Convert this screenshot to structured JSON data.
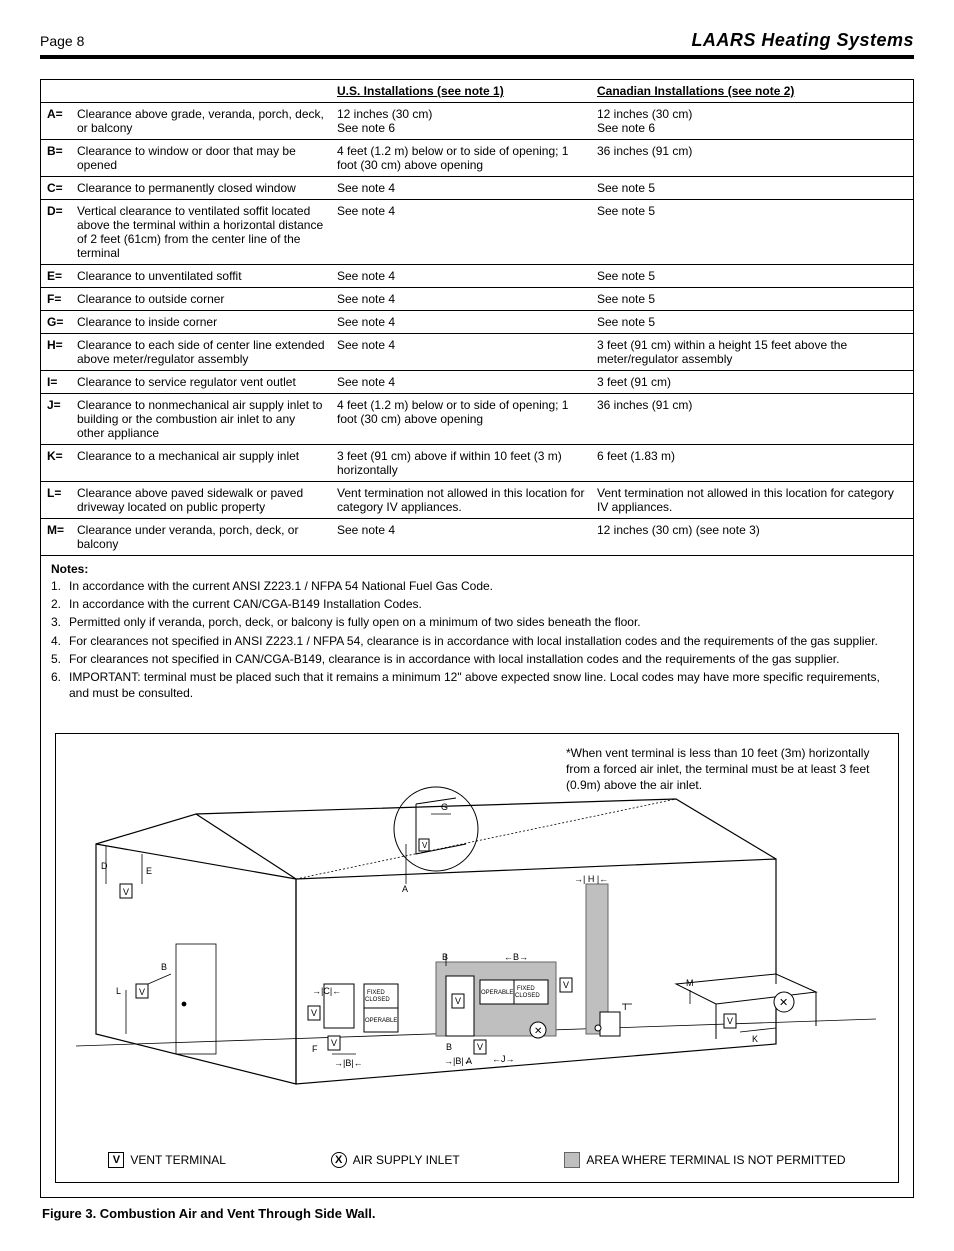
{
  "header": {
    "page_label": "Page 8",
    "brand": "LAARS Heating Systems"
  },
  "table": {
    "columns": [
      "",
      "",
      "U.S. Installations (see note 1)",
      "Canadian Installations (see note 2)"
    ],
    "rows": [
      {
        "key": "A=",
        "desc": "Clearance above grade, veranda, porch, deck, or balcony",
        "us": "12 inches (30 cm)\nSee note 6",
        "ca": "12 inches (30 cm)\nSee note 6"
      },
      {
        "key": "B=",
        "desc": "Clearance to window or door that may be opened",
        "us": "4 feet (1.2 m) below or to side of opening; 1 foot (30 cm) above opening",
        "ca": "36 inches (91 cm)"
      },
      {
        "key": "C=",
        "desc": "Clearance to permanently closed window",
        "us": "See note 4",
        "ca": "See note 5"
      },
      {
        "key": "D=",
        "desc": "Vertical clearance to ventilated soffit located above the terminal within a horizontal distance of 2 feet (61cm) from the center line of the terminal",
        "us": "See note 4",
        "ca": "See note 5"
      },
      {
        "key": "E=",
        "desc": "Clearance to unventilated soffit",
        "us": "See note 4",
        "ca": "See note 5"
      },
      {
        "key": "F=",
        "desc": "Clearance to outside corner",
        "us": "See note 4",
        "ca": "See note 5"
      },
      {
        "key": "G=",
        "desc": "Clearance to inside corner",
        "us": "See note 4",
        "ca": "See note 5"
      },
      {
        "key": "H=",
        "desc": "Clearance to each side of center line extended above meter/regulator assembly",
        "us": "See note 4",
        "ca": "3 feet (91 cm) within a height 15 feet above the meter/regulator assembly"
      },
      {
        "key": "I=",
        "desc": "Clearance to service regulator vent outlet",
        "us": "See note 4",
        "ca": "3 feet (91 cm)"
      },
      {
        "key": "J=",
        "desc": "Clearance to nonmechanical air supply inlet to building or the combustion air inlet to any other appliance",
        "us": "4 feet (1.2 m) below or to side of opening; 1 foot (30 cm) above opening",
        "ca": "36 inches (91 cm)"
      },
      {
        "key": "K=",
        "desc": "Clearance to a mechanical air supply inlet",
        "us": "3 feet (91 cm) above if within 10 feet (3 m) horizontally",
        "ca": "6 feet (1.83 m)"
      },
      {
        "key": "L=",
        "desc": "Clearance above paved sidewalk or paved driveway located on public property",
        "us": "Vent termination not allowed in this location for category IV appliances.",
        "ca": "Vent termination not allowed in this location for category IV appliances."
      },
      {
        "key": "M=",
        "desc": "Clearance under veranda, porch, deck, or balcony",
        "us": "See note 4",
        "ca": "12 inches (30 cm) (see note 3)"
      }
    ]
  },
  "notes": {
    "title": "Notes:",
    "items": [
      "In accordance with the current ANSI Z223.1 / NFPA 54 National Fuel Gas Code.",
      "In accordance with the current CAN/CGA-B149 Installation Codes.",
      "Permitted only if veranda, porch, deck, or balcony is fully open on a minimum of two sides beneath the floor.",
      "For clearances not specified in ANSI Z223.1 / NFPA 54, clearance is in accordance with local installation codes and the requirements of the gas supplier.",
      "For clearances not specified in CAN/CGA-B149, clearance is in accordance with local installation codes and the requirements of the gas supplier.",
      "IMPORTANT: terminal must be placed such that it remains a minimum 12\" above expected snow line. Local codes may have more specific requirements, and must be consulted."
    ]
  },
  "figure": {
    "note": "*When vent terminal is less than 10 feet (3m) horizontally from a forced air inlet, the terminal must be at least 3 feet (0.9m) above the air inlet.",
    "legend": {
      "v": "VENT TERMINAL",
      "x": "AIR SUPPLY INLET",
      "area": "AREA WHERE TERMINAL IS NOT PERMITTED"
    },
    "caption": "Figure 3. Combustion Air and Vent Through Side Wall.",
    "labels": [
      "A",
      "B",
      "C",
      "D",
      "E",
      "F",
      "G",
      "H",
      "I",
      "J",
      "K",
      "L",
      "M"
    ],
    "window_labels": [
      "FIXED CLOSED",
      "OPERABLE",
      "FIXED CLOSED",
      "OPERABLE"
    ],
    "colors": {
      "line": "#000000",
      "fill_gray": "#bfbfbf",
      "bg": "#ffffff"
    }
  }
}
